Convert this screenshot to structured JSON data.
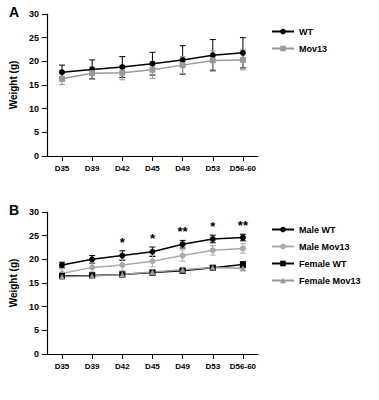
{
  "chart_data": [
    {
      "type": "line",
      "title": "A",
      "ylabel": "Weight (g)",
      "categories": [
        "D35",
        "D39",
        "D42",
        "D45",
        "D49",
        "D53",
        "D56-60"
      ],
      "ylim": [
        0,
        30
      ],
      "yticks": [
        0,
        5,
        10,
        15,
        20,
        25,
        30
      ],
      "grid": false,
      "legend": "right",
      "series": [
        {
          "name": "WT",
          "color": "#000000",
          "marker": "circle",
          "values": [
            17.7,
            18.3,
            18.8,
            19.5,
            20.3,
            21.3,
            21.8
          ],
          "errors": [
            1.5,
            2.0,
            2.2,
            2.4,
            3.0,
            3.3,
            3.2
          ]
        },
        {
          "name": "Mov13",
          "color": "#999999",
          "marker": "rect",
          "values": [
            16.3,
            17.5,
            17.6,
            18.2,
            19.2,
            20.2,
            20.3
          ],
          "errors": [
            1.2,
            1.3,
            1.5,
            1.8,
            1.8,
            2.0,
            2.1
          ]
        }
      ]
    },
    {
      "type": "line",
      "title": "B",
      "ylabel": "Weight (g)",
      "categories": [
        "D35",
        "D39",
        "D42",
        "D45",
        "D49",
        "D53",
        "D56-60"
      ],
      "ylim": [
        0,
        30
      ],
      "yticks": [
        0,
        5,
        10,
        15,
        20,
        25,
        30
      ],
      "grid": false,
      "legend": "right",
      "series": [
        {
          "name": "Male WT",
          "color": "#000000",
          "marker": "circle",
          "values": [
            18.8,
            20.0,
            20.8,
            21.6,
            23.2,
            24.3,
            24.6
          ],
          "errors": [
            0.6,
            0.8,
            1.0,
            1.0,
            0.8,
            0.8,
            0.7
          ]
        },
        {
          "name": "Male Mov13",
          "color": "#aaaaaa",
          "marker": "circle",
          "values": [
            17.0,
            18.3,
            18.8,
            19.6,
            20.8,
            21.9,
            22.3
          ],
          "errors": [
            1.0,
            1.0,
            1.2,
            1.2,
            1.2,
            1.0,
            1.0
          ]
        },
        {
          "name": "Female WT",
          "color": "#000000",
          "marker": "rect",
          "values": [
            16.5,
            16.6,
            16.8,
            17.2,
            17.6,
            18.2,
            18.9
          ],
          "errors": [
            0.5,
            0.5,
            0.5,
            0.5,
            0.5,
            0.5,
            0.6
          ]
        },
        {
          "name": "Female Mov13",
          "color": "#999999",
          "marker": "triangle",
          "values": [
            16.3,
            16.5,
            16.8,
            17.3,
            17.8,
            18.3,
            18.1
          ],
          "errors": [
            0.5,
            0.5,
            0.5,
            0.5,
            0.5,
            0.5,
            0.5
          ]
        }
      ],
      "annotations": [
        {
          "x": "D42",
          "text": "*"
        },
        {
          "x": "D45",
          "text": "*"
        },
        {
          "x": "D49",
          "text": "**"
        },
        {
          "x": "D53",
          "text": "*"
        },
        {
          "x": "D56-60",
          "text": "**"
        }
      ]
    }
  ]
}
